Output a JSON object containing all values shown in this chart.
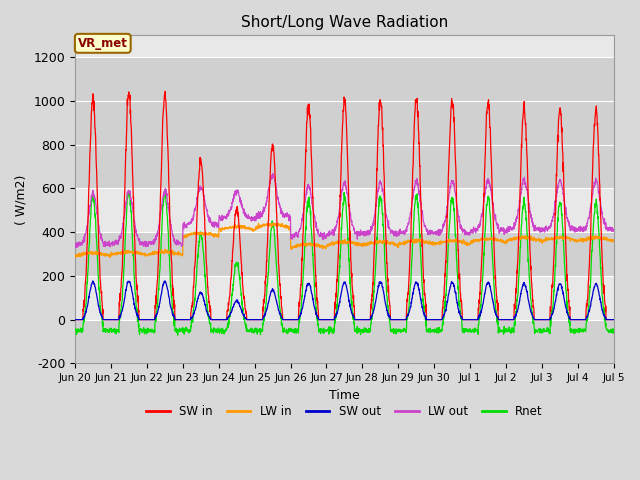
{
  "title": "Short/Long Wave Radiation",
  "xlabel": "Time",
  "ylabel": "( W/m2)",
  "ylim": [
    -200,
    1300
  ],
  "ytick_values": [
    -200,
    0,
    200,
    400,
    600,
    800,
    1000,
    1200
  ],
  "xtick_labels": [
    "Jun 20",
    "Jun 21",
    "Jun 22",
    "Jun 23",
    "Jun 24",
    "Jun 25",
    "Jun 26",
    "Jun 27",
    "Jun 28",
    "Jun 29",
    "Jun 30",
    "Jul 1",
    "Jul 2",
    "Jul 3",
    "Jul 4",
    "Jul 5"
  ],
  "legend_entries": [
    "SW in",
    "LW in",
    "SW out",
    "LW out",
    "Rnet"
  ],
  "colors": {
    "SW_in": "#ff0000",
    "LW_in": "#ff9900",
    "SW_out": "#0000cc",
    "LW_out": "#cc44cc",
    "Rnet": "#00dd00"
  },
  "annotation_label": "VR_met",
  "annotation_box_color": "#ffffcc",
  "annotation_box_edge": "#996600",
  "fig_bg_color": "#d9d9d9",
  "plot_bg_color": "#e8e8e8",
  "shaded_bg_color": "#d0d0d0"
}
